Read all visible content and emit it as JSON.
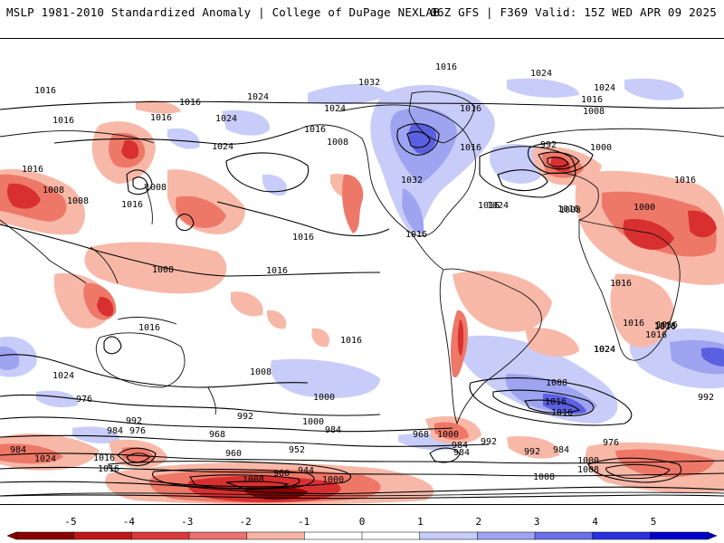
{
  "header": {
    "left_title": "MSLP 1981-2010 Standardized Anomaly | College of DuPage NEXLAB",
    "right_title": "06Z GFS | F369 Valid: 15Z WED APR 09 2025"
  },
  "colorbar": {
    "tick_labels": [
      "-5",
      "-4",
      "-3",
      "-2",
      "-1",
      "0",
      "1",
      "2",
      "3",
      "4",
      "5"
    ],
    "colors": [
      "#8b0000",
      "#c01818",
      "#dc3a3a",
      "#ee7070",
      "#f8b4a4",
      "#ffffff",
      "#ffffff",
      "#c8ccf8",
      "#9ea4f0",
      "#6a70e8",
      "#2a30e0",
      "#0000cc"
    ]
  },
  "anomaly_colors": {
    "neg_light": "#f8b8a8",
    "neg_mid": "#ee7868",
    "neg_strong": "#d83030",
    "neg_extreme": "#8b0000",
    "pos_light": "#c8ccf8",
    "pos_mid": "#9ea4f0",
    "pos_strong": "#5a60e0"
  },
  "isobar_labels": [
    "1016",
    "1024",
    "1016",
    "1032",
    "1024",
    "1016",
    "1016",
    "1024",
    "1016",
    "1008",
    "1024",
    "1016",
    "1016",
    "1024",
    "1008",
    "1016",
    "1024",
    "1032",
    "1016",
    "1024",
    "1008",
    "992",
    "1000",
    "1016",
    "1008",
    "1008",
    "1016",
    "1016",
    "1000",
    "1016",
    "1016",
    "1008",
    "1016",
    "1016",
    "1016",
    "1024",
    "1016",
    "1016",
    "1008",
    "1024",
    "1000",
    "1008",
    "1000",
    "976",
    "992",
    "984",
    "992",
    "984",
    "976",
    "968",
    "960",
    "952",
    "960",
    "944",
    "1008",
    "1000",
    "1000",
    "984",
    "968",
    "984",
    "992",
    "992",
    "984",
    "976",
    "1000",
    "1008",
    "1016",
    "1024",
    "1016",
    "1016",
    "1008",
    "1024",
    "1016",
    "1016",
    "1008",
    "1016",
    "1016",
    "992",
    "1024",
    "1016",
    "1016",
    "984",
    "1016"
  ]
}
